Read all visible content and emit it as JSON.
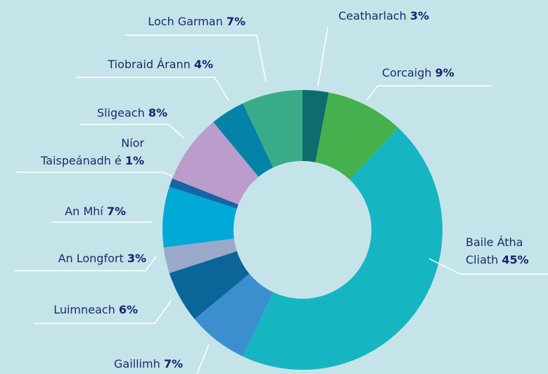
{
  "chart_data": {
    "type": "donut",
    "categories": [
      "Ceatharlach",
      "Corcaigh",
      "Baile Átha Cliath",
      "Gaillimh",
      "Luimneach",
      "An Longfort",
      "An Mhí",
      "Níor Taispeánadh é",
      "Sligeach",
      "Tiobraid Árann",
      "Loch Garman"
    ],
    "values": [
      3,
      9,
      45,
      7,
      6,
      3,
      7,
      1,
      8,
      4,
      7
    ],
    "value_labels": [
      "3%",
      "9%",
      "45%",
      "7%",
      "6%",
      "3%",
      "7%",
      "1%",
      "8%",
      "4%",
      "7%"
    ],
    "colors": [
      "#0e6b6e",
      "#45b14c",
      "#15b6c1",
      "#3b8fcf",
      "#0b6599",
      "#98a9c9",
      "#00a9d6",
      "#1565a6",
      "#bb9ccb",
      "#0482a8",
      "#3aab88"
    ]
  }
}
